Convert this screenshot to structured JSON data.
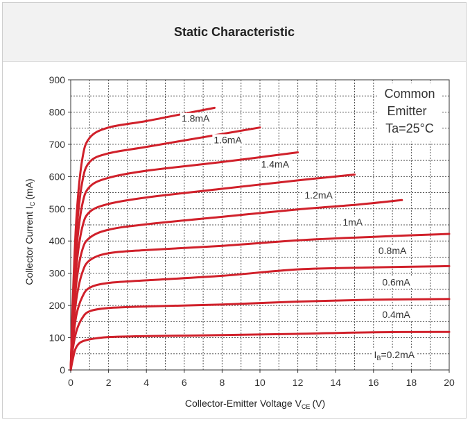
{
  "header": {
    "title": "Static Characteristic"
  },
  "chart_data": {
    "type": "line",
    "title": "Static Characteristic",
    "xlabel": "Collector-Emitter Voltage V",
    "xlabel_sub": "CE",
    "xlabel_unit": "(V)",
    "ylabel": "Collector Current I",
    "ylabel_sub": "C",
    "ylabel_unit": "(mA)",
    "xlim": [
      0,
      20
    ],
    "ylim": [
      0,
      900
    ],
    "xticks": [
      "0",
      "2",
      "4",
      "6",
      "8",
      "10",
      "12",
      "14",
      "16",
      "18",
      "20"
    ],
    "yticks": [
      "0",
      "100",
      "200",
      "300",
      "400",
      "500",
      "600",
      "700",
      "800",
      "900"
    ],
    "grid": true,
    "line_color": "#d0202a",
    "annotation": [
      "Common",
      "Emitter",
      "Ta=25°C"
    ],
    "series": [
      {
        "name": "I_B=0.2mA",
        "label_prefix": "I",
        "label_sub": "B",
        "label_rest": "=0.2mA",
        "points": [
          [
            0,
            0
          ],
          [
            0.1,
            30
          ],
          [
            0.25,
            65
          ],
          [
            0.5,
            85
          ],
          [
            1,
            95
          ],
          [
            2,
            102
          ],
          [
            4,
            105
          ],
          [
            8,
            108
          ],
          [
            12,
            112
          ],
          [
            16,
            117
          ],
          [
            20,
            118
          ]
        ]
      },
      {
        "name": "0.4mA",
        "label_prefix": "0.4mA",
        "points": [
          [
            0,
            0
          ],
          [
            0.1,
            60
          ],
          [
            0.3,
            120
          ],
          [
            0.6,
            160
          ],
          [
            1,
            182
          ],
          [
            2,
            192
          ],
          [
            4,
            197
          ],
          [
            8,
            203
          ],
          [
            12,
            212
          ],
          [
            16,
            218
          ],
          [
            20,
            220
          ]
        ]
      },
      {
        "name": "0.6mA",
        "label_prefix": "0.6mA",
        "points": [
          [
            0,
            0
          ],
          [
            0.1,
            80
          ],
          [
            0.3,
            170
          ],
          [
            0.6,
            225
          ],
          [
            1,
            255
          ],
          [
            2,
            270
          ],
          [
            4,
            278
          ],
          [
            8,
            292
          ],
          [
            12,
            312
          ],
          [
            16,
            318
          ],
          [
            20,
            322
          ]
        ]
      },
      {
        "name": "0.8mA",
        "label_prefix": "0.8mA",
        "points": [
          [
            0,
            0
          ],
          [
            0.1,
            100
          ],
          [
            0.3,
            220
          ],
          [
            0.6,
            300
          ],
          [
            1,
            340
          ],
          [
            2,
            362
          ],
          [
            4,
            372
          ],
          [
            8,
            385
          ],
          [
            12,
            402
          ],
          [
            16,
            413
          ],
          [
            20,
            422
          ]
        ]
      },
      {
        "name": "1mA",
        "label_prefix": "1mA",
        "points": [
          [
            0,
            0
          ],
          [
            0.1,
            120
          ],
          [
            0.3,
            270
          ],
          [
            0.6,
            370
          ],
          [
            1,
            410
          ],
          [
            2,
            435
          ],
          [
            4,
            452
          ],
          [
            8,
            475
          ],
          [
            12,
            498
          ],
          [
            15,
            512
          ],
          [
            17.5,
            527
          ]
        ]
      },
      {
        "name": "1.2mA",
        "label_prefix": "1.2mA",
        "points": [
          [
            0,
            0
          ],
          [
            0.1,
            140
          ],
          [
            0.3,
            320
          ],
          [
            0.6,
            440
          ],
          [
            1,
            490
          ],
          [
            2,
            515
          ],
          [
            4,
            535
          ],
          [
            8,
            562
          ],
          [
            12,
            588
          ],
          [
            15,
            606
          ]
        ]
      },
      {
        "name": "1.4mA",
        "label_prefix": "1.4mA",
        "points": [
          [
            0,
            0
          ],
          [
            0.1,
            160
          ],
          [
            0.3,
            370
          ],
          [
            0.6,
            510
          ],
          [
            1,
            568
          ],
          [
            2,
            596
          ],
          [
            4,
            618
          ],
          [
            8,
            645
          ],
          [
            12,
            675
          ]
        ]
      },
      {
        "name": "1.6mA",
        "label_prefix": "1.6mA",
        "points": [
          [
            0,
            0
          ],
          [
            0.1,
            180
          ],
          [
            0.3,
            420
          ],
          [
            0.6,
            580
          ],
          [
            1,
            645
          ],
          [
            2,
            672
          ],
          [
            4,
            692
          ],
          [
            7,
            722
          ],
          [
            10,
            752
          ]
        ]
      },
      {
        "name": "1.8mA",
        "label_prefix": "1.8mA",
        "points": [
          [
            0,
            0
          ],
          [
            0.1,
            200
          ],
          [
            0.3,
            470
          ],
          [
            0.6,
            650
          ],
          [
            1,
            720
          ],
          [
            2,
            752
          ],
          [
            4,
            772
          ],
          [
            6,
            795
          ],
          [
            7.6,
            813
          ]
        ]
      }
    ],
    "label_positions_data": [
      [
        17.1,
        47
      ],
      [
        17.2,
        172
      ],
      [
        17.2,
        272
      ],
      [
        17.0,
        370
      ],
      [
        14.9,
        459
      ],
      [
        13.1,
        543
      ],
      [
        10.8,
        638
      ],
      [
        8.3,
        714
      ],
      [
        6.6,
        780
      ]
    ]
  }
}
